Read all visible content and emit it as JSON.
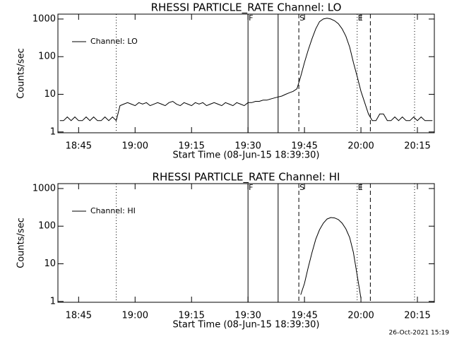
{
  "chart_data": [
    {
      "type": "line",
      "title": "RHESSI PARTICLE_RATE Channel: LO",
      "x_label": "Start Time (08-Jun-15 18:39:30)",
      "y_label": "Counts/sec",
      "log_y": true,
      "xlim": [
        "18:39:30",
        "20:19:30"
      ],
      "ylim": [
        0.95,
        1350
      ],
      "yticks": [
        1,
        10,
        100,
        1000
      ],
      "xticks": [
        "18:45",
        "19:00",
        "19:15",
        "19:30",
        "19:45",
        "20:00",
        "20:15"
      ],
      "legend": "upper left",
      "markers": [
        {
          "x": "18:55",
          "style": "dotted"
        },
        {
          "x": "19:30",
          "style": "solid",
          "label": "F"
        },
        {
          "x": "19:38",
          "style": "solid"
        },
        {
          "x": "19:43:30",
          "style": "dashed",
          "label": "S"
        },
        {
          "x": "19:59",
          "style": "dotted",
          "label": "E"
        },
        {
          "x": "20:02:30",
          "style": "dashed"
        },
        {
          "x": "20:14:15",
          "style": "dotted"
        }
      ],
      "x": [
        "18:40",
        "18:41",
        "18:42",
        "18:43",
        "18:44",
        "18:45",
        "18:46",
        "18:47",
        "18:48",
        "18:49",
        "18:50",
        "18:51",
        "18:52",
        "18:53",
        "18:54",
        "18:55",
        "18:56",
        "18:57",
        "18:58",
        "18:59",
        "19:00",
        "19:01",
        "19:02",
        "19:03",
        "19:04",
        "19:05",
        "19:06",
        "19:07",
        "19:08",
        "19:09",
        "19:10",
        "19:11",
        "19:12",
        "19:13",
        "19:14",
        "19:15",
        "19:16",
        "19:17",
        "19:18",
        "19:19",
        "19:20",
        "19:21",
        "19:22",
        "19:23",
        "19:24",
        "19:25",
        "19:26",
        "19:27",
        "19:28",
        "19:29",
        "19:30",
        "19:31",
        "19:32",
        "19:33",
        "19:34",
        "19:35",
        "19:36",
        "19:37",
        "19:38",
        "19:39",
        "19:40",
        "19:41",
        "19:42",
        "19:43",
        "19:44",
        "19:45",
        "19:46",
        "19:47",
        "19:48",
        "19:49",
        "19:50",
        "19:51",
        "19:52",
        "19:53",
        "19:54",
        "19:55",
        "19:56",
        "19:57",
        "19:58",
        "19:59",
        "20:00",
        "20:01",
        "20:02",
        "20:03",
        "20:04",
        "20:05",
        "20:06",
        "20:07",
        "20:08",
        "20:09",
        "20:10",
        "20:11",
        "20:12",
        "20:13",
        "20:14",
        "20:15",
        "20:16",
        "20:17",
        "20:18",
        "20:19"
      ],
      "series": [
        {
          "name": "Channel: LO",
          "color": "#000000",
          "values": [
            2,
            2,
            2.5,
            2,
            2.5,
            2,
            2,
            2.5,
            2,
            2.5,
            2,
            2,
            2.5,
            2,
            2.5,
            2,
            5,
            5.5,
            6,
            5.5,
            5,
            6,
            5.5,
            6,
            5,
            5.5,
            6,
            5.5,
            5,
            6,
            6.5,
            5.5,
            5,
            6,
            5.5,
            5,
            6,
            5.5,
            6,
            5,
            5.5,
            6,
            5.5,
            5,
            6,
            5.5,
            5,
            6,
            5.5,
            5,
            6,
            6,
            6.5,
            6.5,
            7,
            7,
            7.5,
            8,
            8.5,
            9,
            10,
            11,
            12,
            14,
            30,
            70,
            150,
            300,
            550,
            850,
            1000,
            1050,
            1000,
            900,
            750,
            550,
            350,
            180,
            70,
            30,
            12,
            6,
            3,
            2,
            2,
            3,
            3,
            2,
            2,
            2.5,
            2,
            2.5,
            2,
            2,
            2.5,
            2,
            2.5,
            2,
            2,
            2
          ]
        }
      ]
    },
    {
      "type": "line",
      "title": "RHESSI PARTICLE_RATE Channel: HI",
      "x_label": "Start Time (08-Jun-15 18:39:30)",
      "y_label": "Counts/sec",
      "log_y": true,
      "xlim": [
        "18:39:30",
        "20:19:30"
      ],
      "ylim": [
        0.95,
        1350
      ],
      "yticks": [
        1,
        10,
        100,
        1000
      ],
      "xticks": [
        "18:45",
        "19:00",
        "19:15",
        "19:30",
        "19:45",
        "20:00",
        "20:15"
      ],
      "legend": "upper left",
      "markers": [
        {
          "x": "18:55",
          "style": "dotted"
        },
        {
          "x": "19:30",
          "style": "solid",
          "label": "F"
        },
        {
          "x": "19:38",
          "style": "solid"
        },
        {
          "x": "19:43:30",
          "style": "dashed",
          "label": "S"
        },
        {
          "x": "19:59",
          "style": "dotted",
          "label": "E"
        },
        {
          "x": "20:02:30",
          "style": "dashed"
        },
        {
          "x": "20:14:15",
          "style": "dotted"
        }
      ],
      "x": [
        "19:44",
        "19:45",
        "19:46",
        "19:47",
        "19:48",
        "19:49",
        "19:50",
        "19:51",
        "19:52",
        "19:53",
        "19:54",
        "19:55",
        "19:56",
        "19:57",
        "19:58",
        "19:59",
        "20:00"
      ],
      "series": [
        {
          "name": "Channel: HI",
          "color": "#000000",
          "values": [
            1.5,
            3,
            8,
            20,
            45,
            80,
            120,
            155,
            170,
            165,
            150,
            120,
            85,
            50,
            20,
            5,
            1.2
          ]
        }
      ]
    }
  ],
  "footer": "26-Oct-2021 15:19"
}
